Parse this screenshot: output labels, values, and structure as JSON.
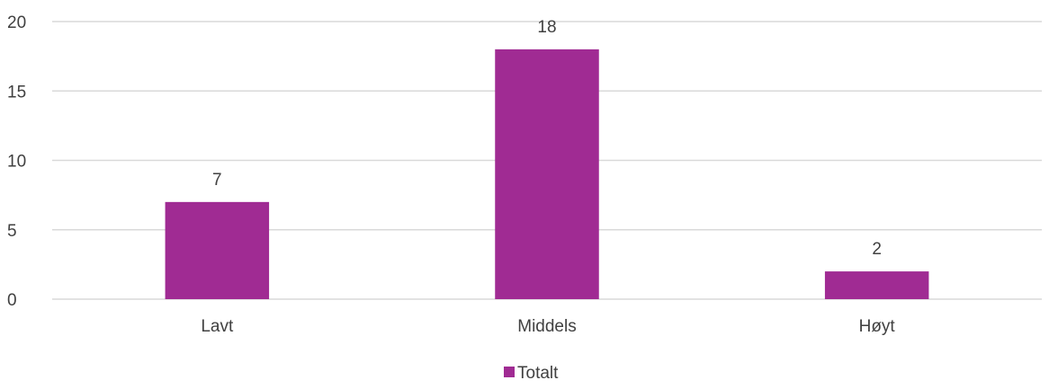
{
  "chart_data": {
    "type": "bar",
    "categories": [
      "Lavt",
      "Middels",
      "Høyt"
    ],
    "series": [
      {
        "name": "Totalt",
        "values": [
          7,
          18,
          2
        ],
        "color": "#A02B93"
      }
    ],
    "title": "",
    "xlabel": "",
    "ylabel": "",
    "ylim": [
      0,
      20
    ],
    "yticks": [
      0,
      5,
      10,
      15,
      20
    ],
    "grid": true,
    "data_labels": true,
    "legend": "bottom"
  },
  "colors": {
    "bar": "#A02B93",
    "gridline": "#d9d9d9",
    "text": "#404040"
  }
}
